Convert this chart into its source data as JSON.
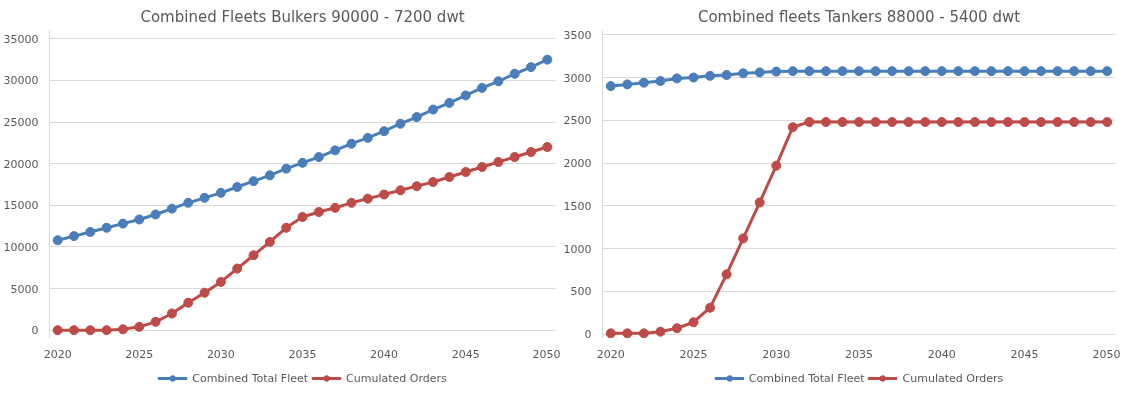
{
  "chart_data": [
    {
      "type": "line",
      "title": "Combined Fleets Bulkers 90000 - 7200 dwt",
      "x": [
        2020,
        2021,
        2022,
        2023,
        2024,
        2025,
        2026,
        2027,
        2028,
        2029,
        2030,
        2031,
        2032,
        2033,
        2034,
        2035,
        2036,
        2037,
        2038,
        2039,
        2040,
        2041,
        2042,
        2043,
        2044,
        2045,
        2046,
        2047,
        2048,
        2049,
        2050
      ],
      "series": [
        {
          "name": "Combined Total Fleet",
          "color": "#4a7ebb",
          "values": [
            10800,
            11300,
            11800,
            12300,
            12800,
            13300,
            13900,
            14600,
            15300,
            15900,
            16500,
            17200,
            17900,
            18600,
            19400,
            20100,
            20800,
            21600,
            22400,
            23100,
            23900,
            24800,
            25600,
            26500,
            27300,
            28200,
            29100,
            29900,
            30800,
            31600,
            32500
          ]
        },
        {
          "name": "Cumulated Orders",
          "color": "#be4b48",
          "values": [
            0,
            0,
            0,
            0,
            100,
            400,
            1000,
            2000,
            3300,
            4500,
            5800,
            7400,
            9000,
            10600,
            12300,
            13600,
            14200,
            14700,
            15300,
            15800,
            16300,
            16800,
            17300,
            17800,
            18400,
            19000,
            19600,
            20200,
            20800,
            21400,
            22000
          ]
        }
      ],
      "xlim": [
        2019.5,
        2050.5
      ],
      "xticks": [
        2020,
        2025,
        2030,
        2035,
        2040,
        2045,
        2050
      ],
      "ylim": [
        -1000,
        36000
      ],
      "yticks": [
        0,
        5000,
        10000,
        15000,
        20000,
        25000,
        30000,
        35000
      ],
      "grid": "y",
      "legend": "bottom",
      "marker": "circle",
      "line_style": "solid"
    },
    {
      "type": "line",
      "title": "Combined fleets Tankers 88000 - 5400 dwt",
      "x": [
        2020,
        2021,
        2022,
        2023,
        2024,
        2025,
        2026,
        2027,
        2028,
        2029,
        2030,
        2031,
        2032,
        2033,
        2034,
        2035,
        2036,
        2037,
        2038,
        2039,
        2040,
        2041,
        2042,
        2043,
        2044,
        2045,
        2046,
        2047,
        2048,
        2049,
        2050
      ],
      "series": [
        {
          "name": "Combined Total Fleet",
          "color": "#4a7ebb",
          "values": [
            2900,
            2920,
            2940,
            2960,
            2990,
            3000,
            3020,
            3030,
            3050,
            3060,
            3070,
            3075,
            3075,
            3075,
            3075,
            3075,
            3075,
            3075,
            3075,
            3075,
            3075,
            3075,
            3075,
            3075,
            3075,
            3075,
            3075,
            3075,
            3075,
            3075,
            3075
          ]
        },
        {
          "name": "Cumulated Orders",
          "color": "#be4b48",
          "values": [
            10,
            10,
            10,
            30,
            70,
            140,
            310,
            700,
            1120,
            1540,
            1970,
            2420,
            2480,
            2480,
            2480,
            2480,
            2480,
            2480,
            2480,
            2480,
            2480,
            2480,
            2480,
            2480,
            2480,
            2480,
            2480,
            2480,
            2480,
            2480,
            2480
          ]
        }
      ],
      "xlim": [
        2019.5,
        2050.5
      ],
      "xticks": [
        2020,
        2025,
        2030,
        2035,
        2040,
        2045,
        2050
      ],
      "ylim": [
        -50,
        3550
      ],
      "yticks": [
        0,
        500,
        1000,
        1500,
        2000,
        2500,
        3000,
        3500
      ],
      "grid": "y",
      "legend": "bottom",
      "marker": "circle",
      "line_style": "solid"
    }
  ]
}
